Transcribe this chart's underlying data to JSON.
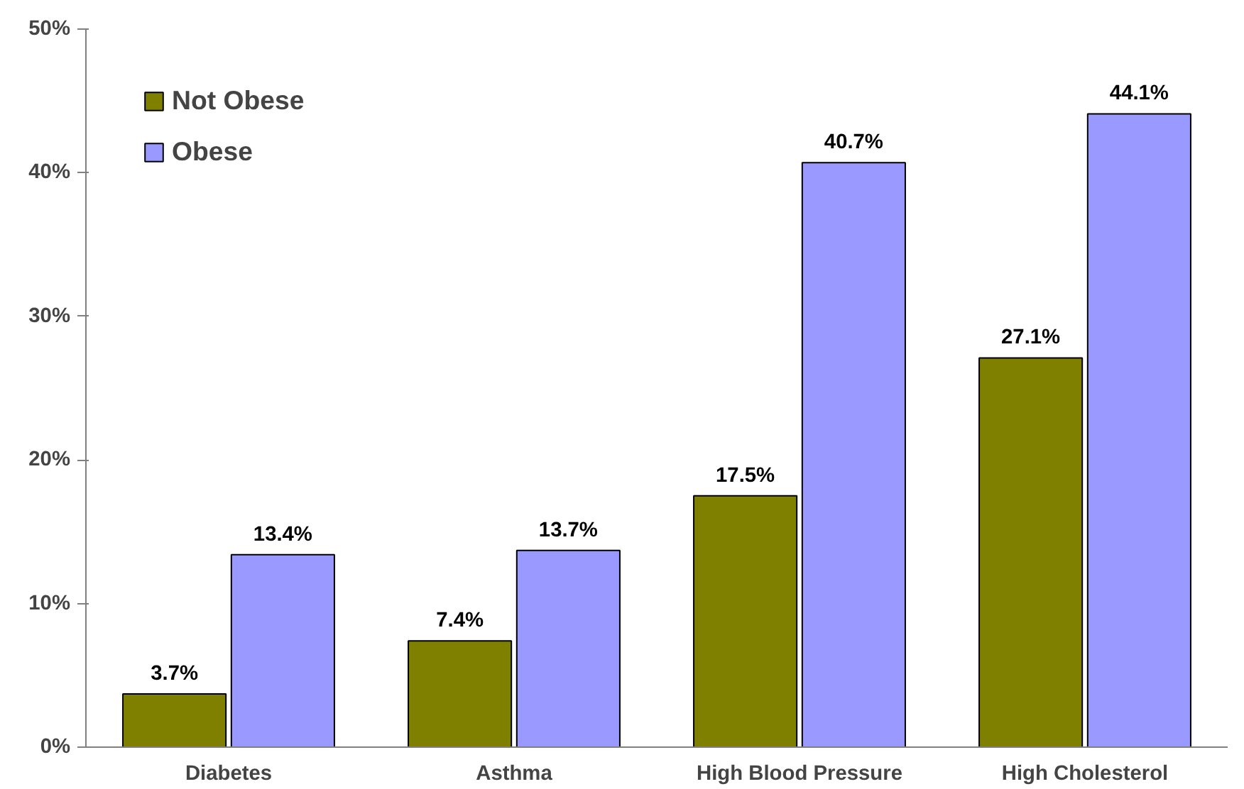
{
  "chart_data": {
    "type": "bar",
    "categories": [
      "Diabetes",
      "Asthma",
      "High Blood Pressure",
      "High Cholesterol"
    ],
    "series": [
      {
        "name": "Not Obese",
        "color": "#808000",
        "values": [
          3.7,
          7.4,
          17.5,
          27.1
        ],
        "value_labels": [
          "3.7%",
          "7.4%",
          "17.5%",
          "27.1%"
        ]
      },
      {
        "name": "Obese",
        "color": "#9999ff",
        "values": [
          13.4,
          13.7,
          40.7,
          44.1
        ],
        "value_labels": [
          "13.4%",
          "13.7%",
          "40.7%",
          "44.1%"
        ]
      }
    ],
    "ylim": [
      0,
      50
    ],
    "yticks": [
      {
        "value": 0,
        "label": "0%"
      },
      {
        "value": 10,
        "label": "10%"
      },
      {
        "value": 20,
        "label": "20%"
      },
      {
        "value": 30,
        "label": "30%"
      },
      {
        "value": 40,
        "label": "40%"
      },
      {
        "value": 50,
        "label": "50%"
      }
    ],
    "grid": false,
    "legend": "top left"
  }
}
